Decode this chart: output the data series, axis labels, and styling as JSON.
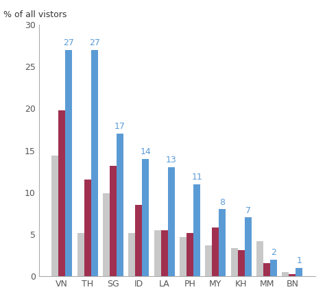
{
  "categories": [
    "VN",
    "TH",
    "SG",
    "ID",
    "LA",
    "PH",
    "MY",
    "KH",
    "MM",
    "BN"
  ],
  "gray_values": [
    14.4,
    5.2,
    9.9,
    5.2,
    5.5,
    4.7,
    3.7,
    3.4,
    4.2,
    0.5
  ],
  "red_values": [
    19.8,
    11.5,
    13.2,
    8.5,
    5.5,
    5.2,
    5.8,
    3.1,
    1.6,
    0.3
  ],
  "blue_values": [
    27,
    27,
    17,
    14,
    13,
    11,
    8,
    7,
    2,
    1
  ],
  "blue_labels": [
    27,
    27,
    17,
    14,
    13,
    11,
    8,
    7,
    2,
    1
  ],
  "gray_color": "#c8c8c8",
  "red_color": "#a03050",
  "blue_color": "#5b9bd5",
  "ylabel": "% of all vistors",
  "ylim": [
    0,
    30
  ],
  "yticks": [
    0,
    5,
    10,
    15,
    20,
    25,
    30
  ],
  "bar_width": 0.27,
  "label_color": "#5b9bd5",
  "label_fontsize": 9,
  "tick_fontsize": 9,
  "spine_color": "#aaaaaa",
  "text_color": "#555555"
}
